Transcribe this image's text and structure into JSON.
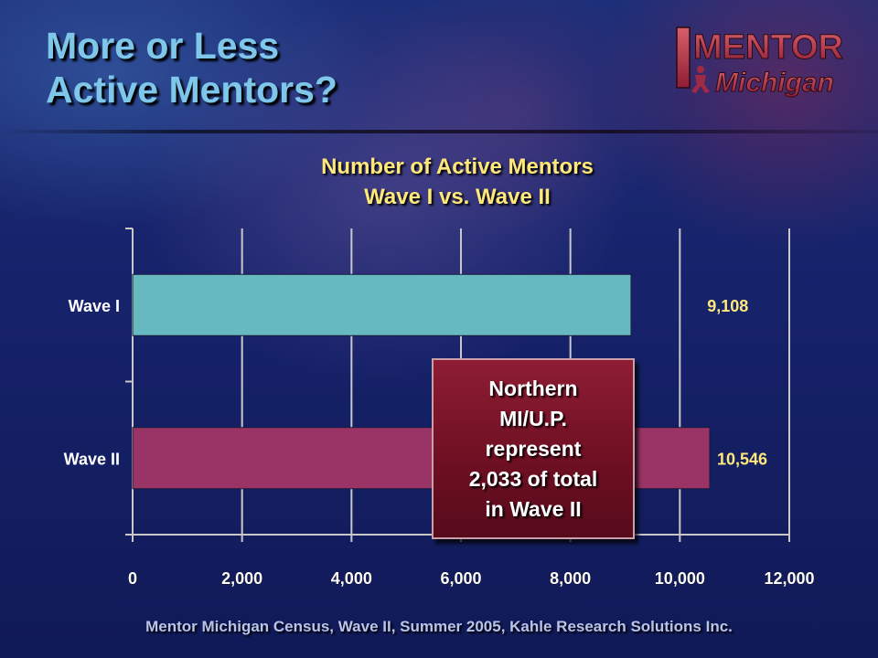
{
  "slide": {
    "title_line1": "More or Less",
    "title_line2": "Active Mentors?",
    "footer": "Mentor Michigan Census, Wave II, Summer 2005, Kahle Research Solutions Inc."
  },
  "logo": {
    "word1": "MENTOR",
    "word2": "Michigan"
  },
  "chart_data": {
    "type": "bar",
    "orientation": "horizontal",
    "title": "Number of Active Mentors",
    "subtitle": "Wave I vs. Wave II",
    "categories": [
      "Wave I",
      "Wave II"
    ],
    "values": [
      9108,
      10546
    ],
    "data_labels": [
      "9,108",
      "10,546"
    ],
    "bar_colors": [
      "#66b9c1",
      "#9a3466"
    ],
    "xlim": [
      0,
      12000
    ],
    "xticks": [
      0,
      2000,
      4000,
      6000,
      8000,
      10000,
      12000
    ],
    "xtick_labels": [
      "0",
      "2,000",
      "4,000",
      "6,000",
      "8,000",
      "10,000",
      "12,000"
    ],
    "grid": true,
    "legend": "none",
    "annotation": {
      "lines": [
        "Northern",
        "MI/U.P.",
        "represent",
        "2,033 of total",
        "in Wave II"
      ]
    }
  },
  "colors": {
    "title": "#7ec6ea",
    "chart_title": "#ffe87a",
    "data_label": "#ffe87a",
    "axis_text": "#ffffff",
    "grid": "#c8c8c8",
    "callout_bg": "#7a1428"
  }
}
